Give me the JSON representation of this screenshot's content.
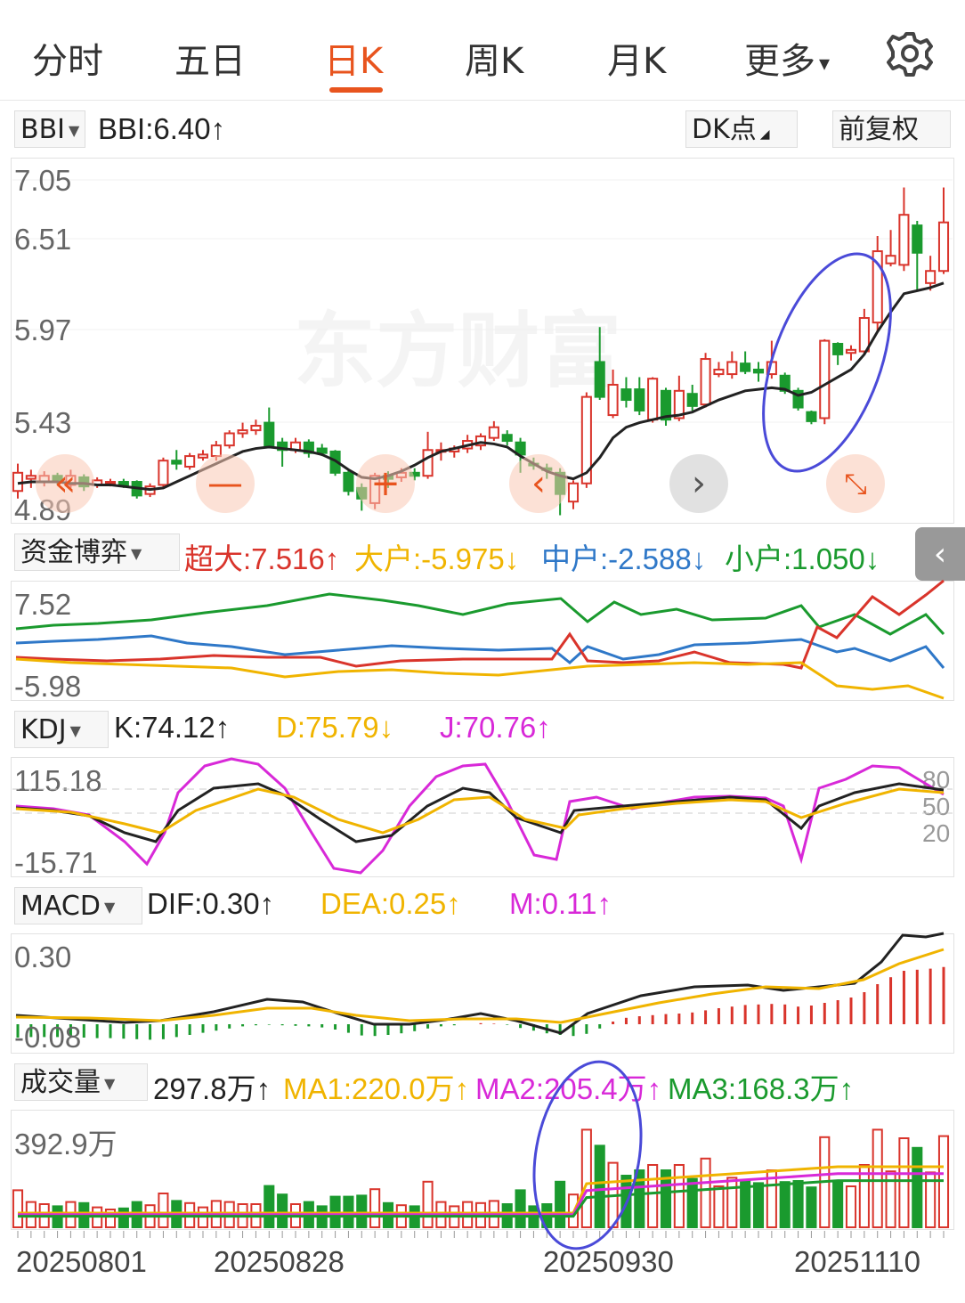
{
  "tabs": [
    {
      "label": "分时"
    },
    {
      "label": "五日"
    },
    {
      "label": "日K"
    },
    {
      "label": "周K"
    },
    {
      "label": "月K"
    },
    {
      "label": "更多"
    }
  ],
  "tabs_more_caret": "▾",
  "settings_icon": "gear-icon",
  "main": {
    "indicator": "BBI",
    "indicator_value": "BBI:6.40",
    "dk_button": "DK点",
    "adjust_button": "前复权",
    "y_labels": [
      "7.05",
      "6.51",
      "5.97",
      "5.43",
      "4.89"
    ],
    "watermark": "东方财富"
  },
  "capital": {
    "indicator": "资金博弈",
    "super": "超大:7.516",
    "large": "大户:-5.975",
    "medium": "中户:-2.588",
    "small": "小户:1.050",
    "y_top": "7.52",
    "y_bottom": "-5.98"
  },
  "kdj": {
    "indicator": "KDJ",
    "k": "K:74.12",
    "d": "D:75.79",
    "j": "J:70.76",
    "y_top": "115.18",
    "y_bottom": "-15.71",
    "levels": [
      "80",
      "50",
      "20"
    ]
  },
  "macd": {
    "indicator": "MACD",
    "dif": "DIF:0.30",
    "dea": "DEA:0.25",
    "m": "M:0.11",
    "y_top": "0.30",
    "y_bottom": "-0.08"
  },
  "volume": {
    "indicator": "成交量",
    "vol": "297.8万",
    "ma1": "MA1:220.0万",
    "ma2": "MA2:205.4万",
    "ma3": "MA3:168.3万",
    "y_top": "392.9万"
  },
  "dates": [
    "20250801",
    "20250828",
    "20250930",
    "20251110"
  ],
  "arrows": {
    "up": "↑",
    "down": "↓"
  },
  "colors": {
    "up": "#d9342b",
    "down": "#1a9a2e",
    "accent": "#e8541e",
    "yellow": "#f0b400",
    "magenta": "#d829d8",
    "blue": "#2f78c8",
    "green_line": "#1a9a2e",
    "annotation": "#4a4ad8"
  },
  "chart_data": {
    "type": "candlestick",
    "ylim": [
      4.89,
      7.05
    ],
    "candles": [
      {
        "o": 5.0,
        "c": 5.12,
        "h": 5.18,
        "l": 4.95
      },
      {
        "o": 5.08,
        "c": 5.1,
        "h": 5.14,
        "l": 5.02
      },
      {
        "o": 5.06,
        "c": 5.1,
        "h": 5.13,
        "l": 5.03
      },
      {
        "o": 5.1,
        "c": 5.07,
        "h": 5.12,
        "l": 5.04
      },
      {
        "o": 5.04,
        "c": 5.1,
        "h": 5.14,
        "l": 5.02
      },
      {
        "o": 5.09,
        "c": 5.03,
        "h": 5.11,
        "l": 5.0
      },
      {
        "o": 5.04,
        "c": 5.07,
        "h": 5.09,
        "l": 5.02
      },
      {
        "o": 5.05,
        "c": 5.06,
        "h": 5.08,
        "l": 5.03
      },
      {
        "o": 5.06,
        "c": 5.04,
        "h": 5.08,
        "l": 5.02
      },
      {
        "o": 5.06,
        "c": 4.97,
        "h": 5.07,
        "l": 4.95
      },
      {
        "o": 4.98,
        "c": 5.03,
        "h": 5.05,
        "l": 4.96
      },
      {
        "o": 5.04,
        "c": 5.2,
        "h": 5.22,
        "l": 5.02
      },
      {
        "o": 5.2,
        "c": 5.18,
        "h": 5.27,
        "l": 5.14
      },
      {
        "o": 5.16,
        "c": 5.23,
        "h": 5.25,
        "l": 5.14
      },
      {
        "o": 5.22,
        "c": 5.24,
        "h": 5.27,
        "l": 5.2
      },
      {
        "o": 5.23,
        "c": 5.3,
        "h": 5.33,
        "l": 5.2
      },
      {
        "o": 5.3,
        "c": 5.38,
        "h": 5.4,
        "l": 5.28
      },
      {
        "o": 5.38,
        "c": 5.4,
        "h": 5.45,
        "l": 5.35
      },
      {
        "o": 5.4,
        "c": 5.43,
        "h": 5.47,
        "l": 5.37
      },
      {
        "o": 5.45,
        "c": 5.3,
        "h": 5.55,
        "l": 5.28
      },
      {
        "o": 5.32,
        "c": 5.27,
        "h": 5.35,
        "l": 5.16
      },
      {
        "o": 5.27,
        "c": 5.32,
        "h": 5.35,
        "l": 5.25
      },
      {
        "o": 5.32,
        "c": 5.25,
        "h": 5.34,
        "l": 5.22
      },
      {
        "o": 5.28,
        "c": 5.25,
        "h": 5.31,
        "l": 5.23
      },
      {
        "o": 5.26,
        "c": 5.12,
        "h": 5.27,
        "l": 5.1
      },
      {
        "o": 5.12,
        "c": 5.0,
        "h": 5.14,
        "l": 4.97
      },
      {
        "o": 5.02,
        "c": 4.95,
        "h": 5.05,
        "l": 4.87
      },
      {
        "o": 4.92,
        "c": 5.1,
        "h": 5.12,
        "l": 4.88
      },
      {
        "o": 5.1,
        "c": 5.08,
        "h": 5.13,
        "l": 5.02
      },
      {
        "o": 5.09,
        "c": 5.12,
        "h": 5.15,
        "l": 5.06
      },
      {
        "o": 5.12,
        "c": 5.1,
        "h": 5.15,
        "l": 5.07
      },
      {
        "o": 5.1,
        "c": 5.27,
        "h": 5.39,
        "l": 5.08
      },
      {
        "o": 5.26,
        "c": 5.27,
        "h": 5.32,
        "l": 5.2
      },
      {
        "o": 5.26,
        "c": 5.28,
        "h": 5.3,
        "l": 5.22
      },
      {
        "o": 5.28,
        "c": 5.33,
        "h": 5.37,
        "l": 5.25
      },
      {
        "o": 5.3,
        "c": 5.36,
        "h": 5.38,
        "l": 5.27
      },
      {
        "o": 5.35,
        "c": 5.42,
        "h": 5.46,
        "l": 5.33
      },
      {
        "o": 5.37,
        "c": 5.33,
        "h": 5.4,
        "l": 5.3
      },
      {
        "o": 5.32,
        "c": 5.24,
        "h": 5.35,
        "l": 5.12
      },
      {
        "o": 5.18,
        "c": 5.17,
        "h": 5.22,
        "l": 5.14
      },
      {
        "o": 5.15,
        "c": 5.14,
        "h": 5.18,
        "l": 5.08
      },
      {
        "o": 5.12,
        "c": 4.98,
        "h": 5.15,
        "l": 4.84
      },
      {
        "o": 4.93,
        "c": 5.05,
        "h": 5.07,
        "l": 4.88
      },
      {
        "o": 5.05,
        "c": 5.62,
        "h": 5.65,
        "l": 5.02
      },
      {
        "o": 5.85,
        "c": 5.62,
        "h": 6.08,
        "l": 5.6
      },
      {
        "o": 5.5,
        "c": 5.7,
        "h": 5.8,
        "l": 5.48
      },
      {
        "o": 5.67,
        "c": 5.6,
        "h": 5.75,
        "l": 5.55
      },
      {
        "o": 5.67,
        "c": 5.53,
        "h": 5.75,
        "l": 5.5
      },
      {
        "o": 5.47,
        "c": 5.74,
        "h": 5.75,
        "l": 5.45
      },
      {
        "o": 5.66,
        "c": 5.47,
        "h": 5.68,
        "l": 5.43
      },
      {
        "o": 5.48,
        "c": 5.66,
        "h": 5.76,
        "l": 5.46
      },
      {
        "o": 5.64,
        "c": 5.56,
        "h": 5.7,
        "l": 5.53
      },
      {
        "o": 5.57,
        "c": 5.87,
        "h": 5.91,
        "l": 5.55
      },
      {
        "o": 5.77,
        "c": 5.8,
        "h": 5.85,
        "l": 5.75
      },
      {
        "o": 5.77,
        "c": 5.85,
        "h": 5.92,
        "l": 5.74
      },
      {
        "o": 5.84,
        "c": 5.79,
        "h": 5.92,
        "l": 5.77
      },
      {
        "o": 5.8,
        "c": 5.78,
        "h": 5.85,
        "l": 5.72
      },
      {
        "o": 5.77,
        "c": 5.85,
        "h": 5.99,
        "l": 5.74
      },
      {
        "o": 5.76,
        "c": 5.66,
        "h": 5.78,
        "l": 5.64
      },
      {
        "o": 5.66,
        "c": 5.55,
        "h": 5.68,
        "l": 5.53
      },
      {
        "o": 5.52,
        "c": 5.46,
        "h": 5.53,
        "l": 5.44
      },
      {
        "o": 5.48,
        "c": 5.99,
        "h": 6.0,
        "l": 5.44
      },
      {
        "o": 5.97,
        "c": 5.9,
        "h": 5.98,
        "l": 5.83
      },
      {
        "o": 5.91,
        "c": 5.93,
        "h": 5.96,
        "l": 5.86
      },
      {
        "o": 5.92,
        "c": 6.14,
        "h": 6.2,
        "l": 5.9
      },
      {
        "o": 6.11,
        "c": 6.58,
        "h": 6.68,
        "l": 6.05
      },
      {
        "o": 6.5,
        "c": 6.55,
        "h": 6.72,
        "l": 6.48
      },
      {
        "o": 6.49,
        "c": 6.82,
        "h": 7.0,
        "l": 6.45
      },
      {
        "o": 6.75,
        "c": 6.57,
        "h": 6.78,
        "l": 6.32
      },
      {
        "o": 6.37,
        "c": 6.45,
        "h": 6.55,
        "l": 6.32
      },
      {
        "o": 6.45,
        "c": 6.77,
        "h": 7.0,
        "l": 6.43
      }
    ],
    "bbi": [
      5.05,
      5.06,
      5.06,
      5.06,
      5.05,
      5.05,
      5.04,
      5.04,
      5.03,
      5.02,
      5.01,
      5.02,
      5.06,
      5.1,
      5.14,
      5.18,
      5.22,
      5.26,
      5.28,
      5.29,
      5.28,
      5.27,
      5.26,
      5.24,
      5.2,
      5.14,
      5.09,
      5.08,
      5.1,
      5.13,
      5.17,
      5.22,
      5.26,
      5.28,
      5.3,
      5.32,
      5.31,
      5.29,
      5.23,
      5.18,
      5.13,
      5.1,
      5.08,
      5.12,
      5.22,
      5.35,
      5.42,
      5.45,
      5.47,
      5.49,
      5.5,
      5.52,
      5.56,
      5.6,
      5.63,
      5.66,
      5.67,
      5.68,
      5.67,
      5.63,
      5.65,
      5.7,
      5.75,
      5.8,
      5.9,
      6.05,
      6.18,
      6.3,
      6.32,
      6.34,
      6.37
    ]
  }
}
